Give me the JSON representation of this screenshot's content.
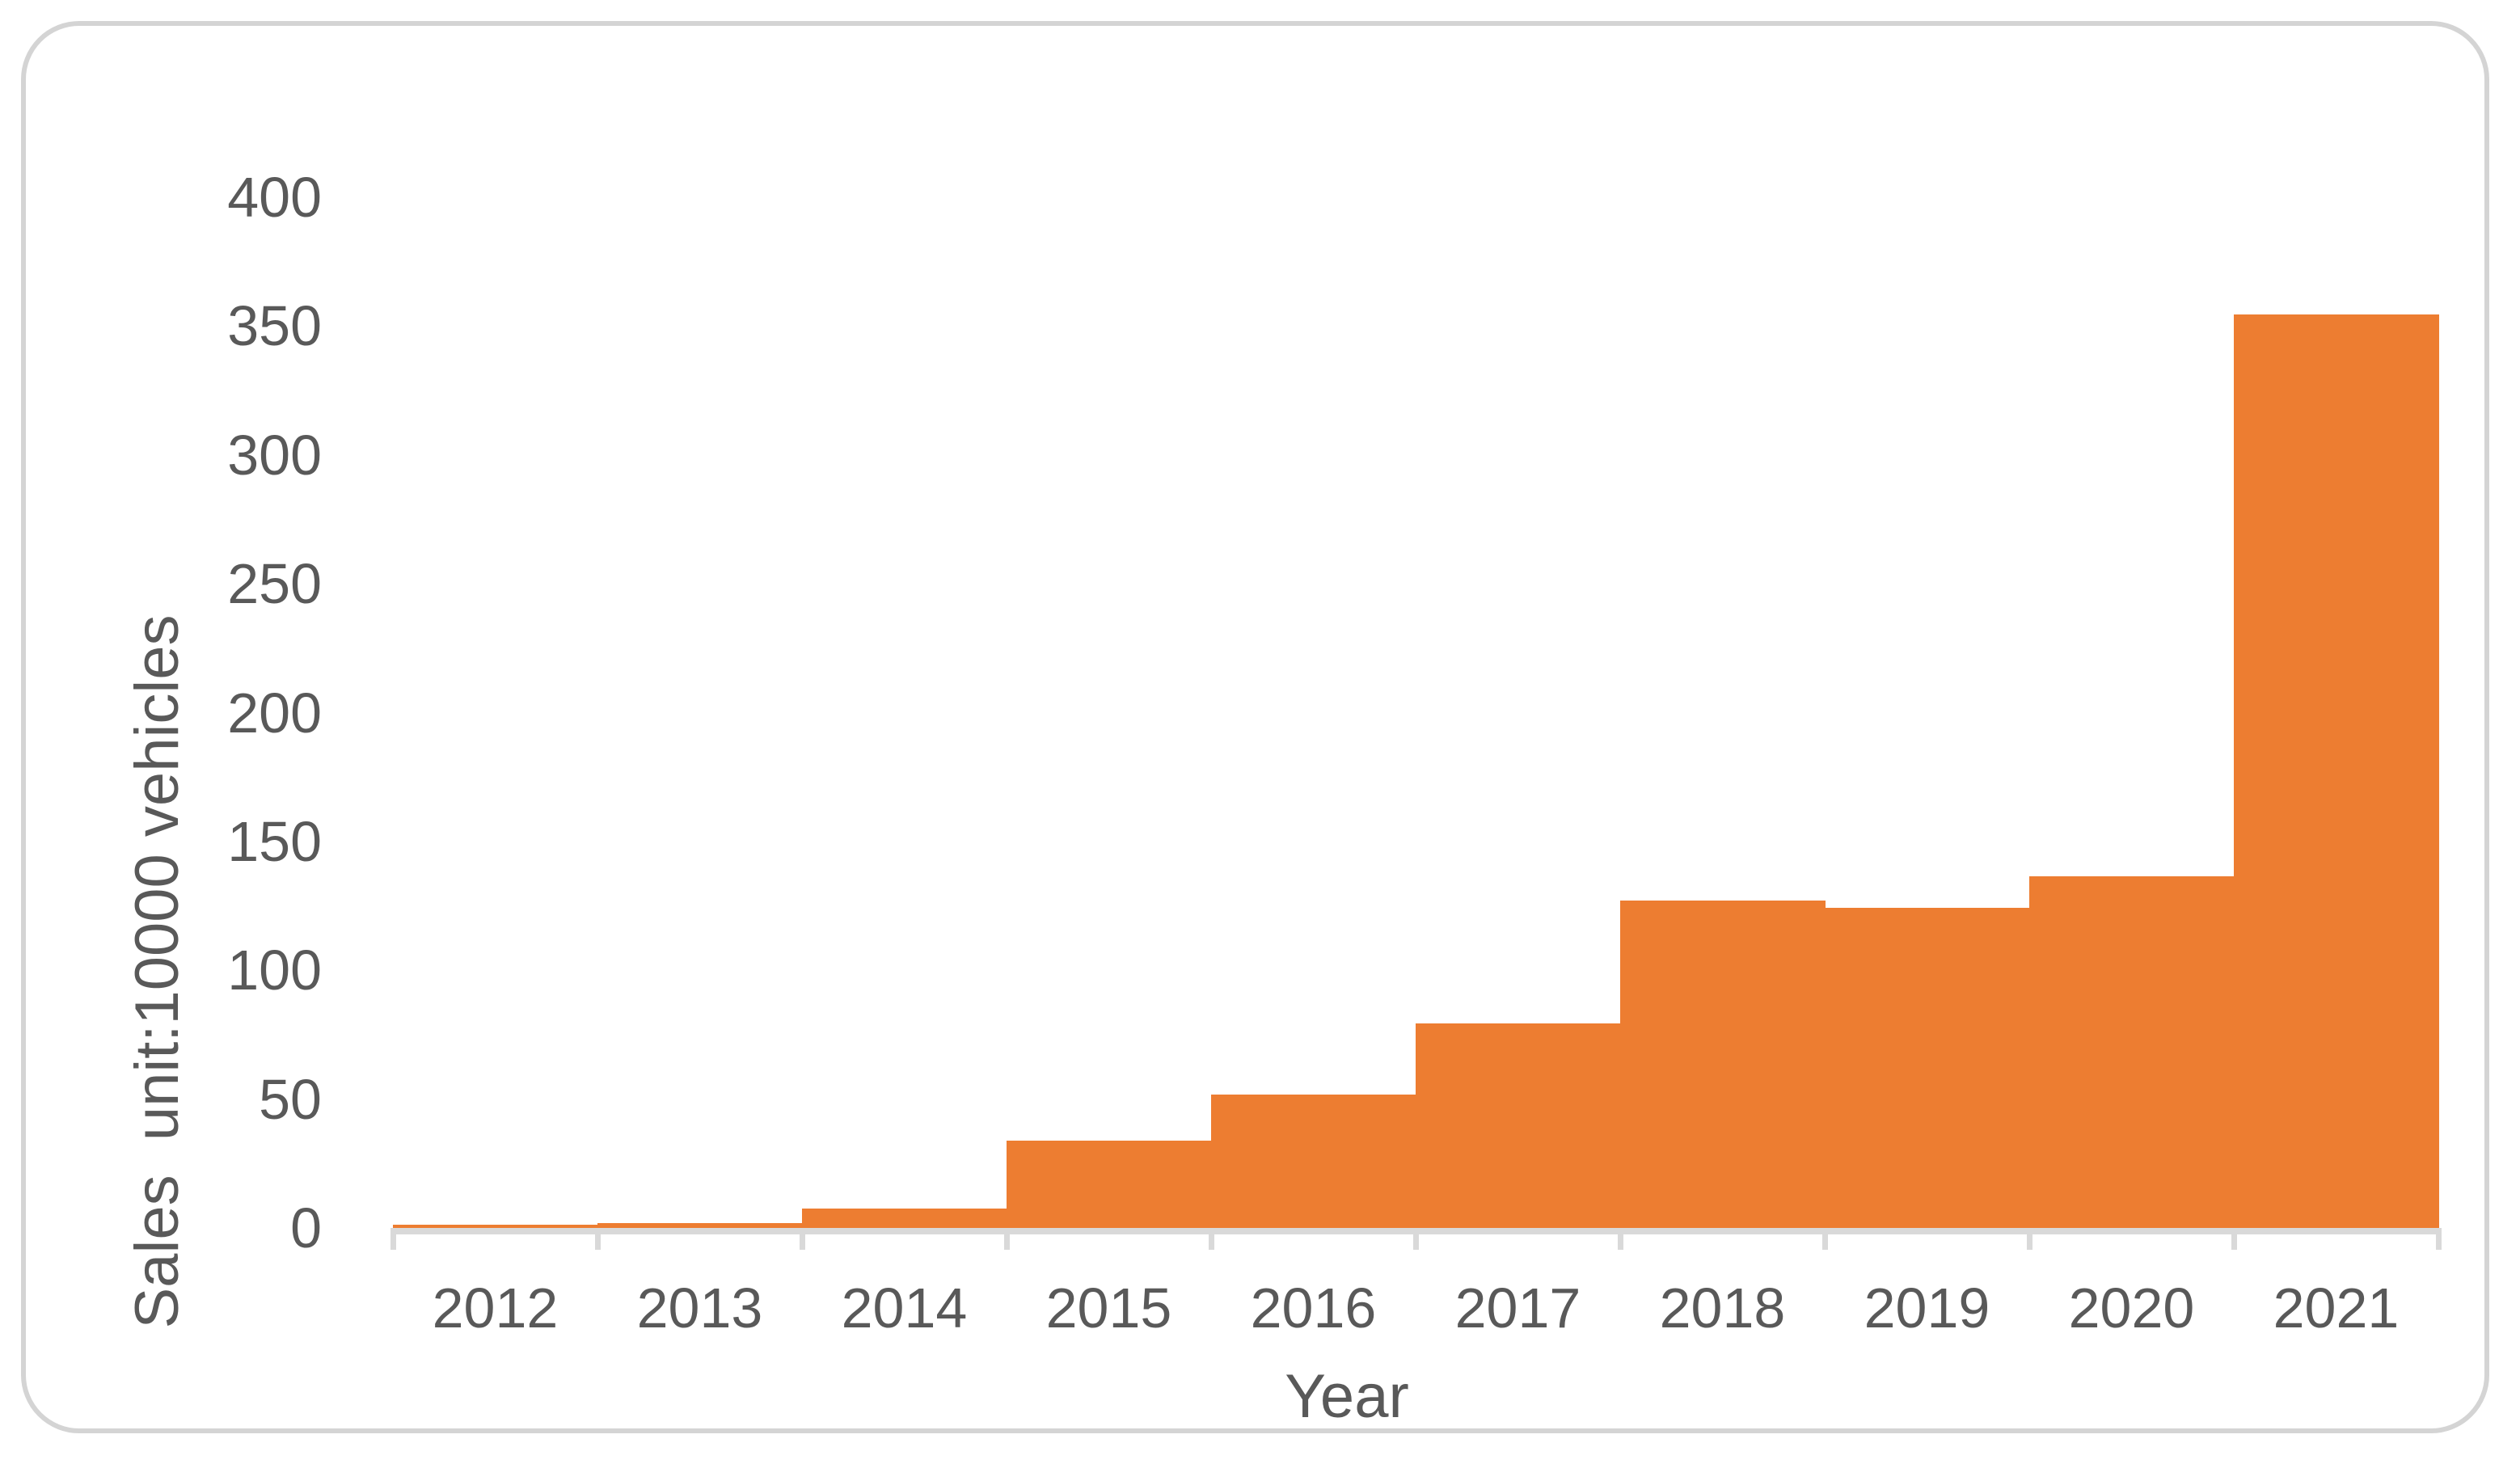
{
  "chart_data": {
    "type": "bar",
    "title": "",
    "categories": [
      "2012",
      "2013",
      "2014",
      "2015",
      "2016",
      "2017",
      "2018",
      "2019",
      "2020",
      "2021"
    ],
    "values": [
      1.3,
      1.8,
      7.5,
      34.0,
      51.7,
      79.4,
      127.0,
      124.2,
      136.6,
      354.5
    ],
    "xlabel": "Year",
    "ylabel": "Sales  unit:10000 vehicles",
    "yticks": [
      0,
      50,
      100,
      150,
      200,
      250,
      300,
      350,
      400
    ],
    "ylim": [
      0,
      400
    ],
    "grid": false,
    "legend": false,
    "bar_gap": 0,
    "colors": {
      "bar": "#ED7D31",
      "axis_line": "#D9D9D9",
      "tick_mark": "#D9D9D9",
      "label_text": "#595959",
      "card_border": "#D4D4D4",
      "background": "#FFFFFF"
    }
  }
}
